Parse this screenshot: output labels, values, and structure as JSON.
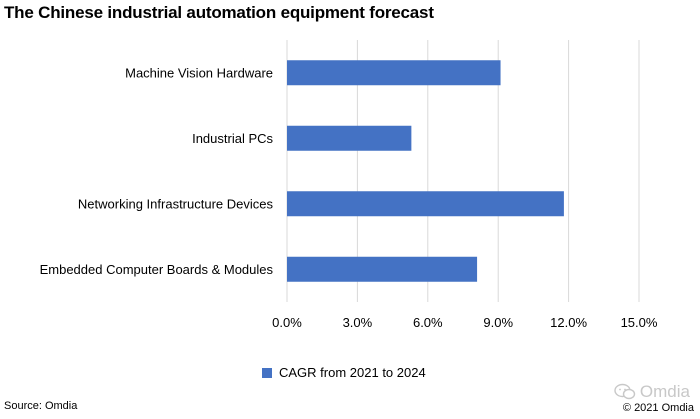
{
  "chart_data": {
    "type": "bar",
    "orientation": "horizontal",
    "title": "The Chinese industrial automation equipment forecast",
    "categories": [
      "Machine Vision Hardware",
      "Industrial PCs",
      "Networking Infrastructure Devices",
      "Embedded Computer Boards & Modules"
    ],
    "series": [
      {
        "name": "CAGR from 2021 to 2024",
        "values": [
          9.1,
          5.3,
          11.8,
          8.1
        ],
        "color": "#4472c4"
      }
    ],
    "xlim": [
      0,
      15
    ],
    "x_ticks": [
      "0.0%",
      "3.0%",
      "6.0%",
      "9.0%",
      "12.0%",
      "15.0%"
    ],
    "grid": true,
    "legend_position": "bottom"
  },
  "footer": {
    "source": "Source: Omdia",
    "watermark": "Omdia",
    "copyright": "© 2021 Omdia"
  },
  "icons": {
    "watermark_icon": "wechat-icon"
  }
}
